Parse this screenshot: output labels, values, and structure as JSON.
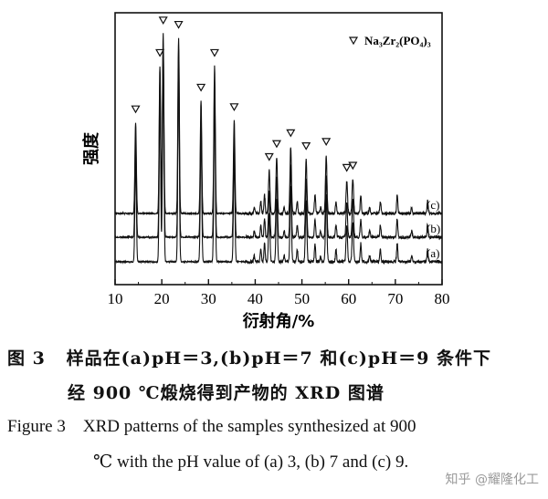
{
  "chart_data": {
    "type": "line",
    "title": "",
    "xlabel": "衍射角/%",
    "ylabel": "强度",
    "xlim": [
      10,
      80
    ],
    "xticks": [
      10,
      20,
      30,
      40,
      50,
      60,
      70,
      80
    ],
    "legend": {
      "marker": "▽",
      "text": "Na₃Zr₂(PO₄)₃",
      "position": "top-right"
    },
    "series": [
      {
        "name": "(a)",
        "baseline": 0
      },
      {
        "name": "(b)",
        "baseline": 1
      },
      {
        "name": "(c)",
        "baseline": 2
      }
    ],
    "peaks": [
      {
        "x": 14.4,
        "h": 0.42
      },
      {
        "x": 19.6,
        "h": 0.68
      },
      {
        "x": 20.3,
        "h": 0.83
      },
      {
        "x": 23.6,
        "h": 0.81
      },
      {
        "x": 28.4,
        "h": 0.52
      },
      {
        "x": 31.3,
        "h": 0.68
      },
      {
        "x": 35.5,
        "h": 0.43
      },
      {
        "x": 43.0,
        "h": 0.2
      },
      {
        "x": 44.6,
        "h": 0.26
      },
      {
        "x": 47.6,
        "h": 0.31
      },
      {
        "x": 50.9,
        "h": 0.25
      },
      {
        "x": 55.2,
        "h": 0.27
      },
      {
        "x": 59.6,
        "h": 0.15
      },
      {
        "x": 60.9,
        "h": 0.16
      }
    ]
  },
  "caption_cn": {
    "line1": "图 3   样品在(a)pH＝3,(b)pH＝7 和(c)pH＝9 条件下",
    "line2": "经 900 ℃煅烧得到产物的 XRD 图谱"
  },
  "caption_en": {
    "line1": "Figure 3    XRD patterns of the samples synthesized at 900",
    "line2": "℃ with the pH value of (a) 3, (b) 7 and (c) 9."
  },
  "watermark": "知乎 @耀隆化工"
}
